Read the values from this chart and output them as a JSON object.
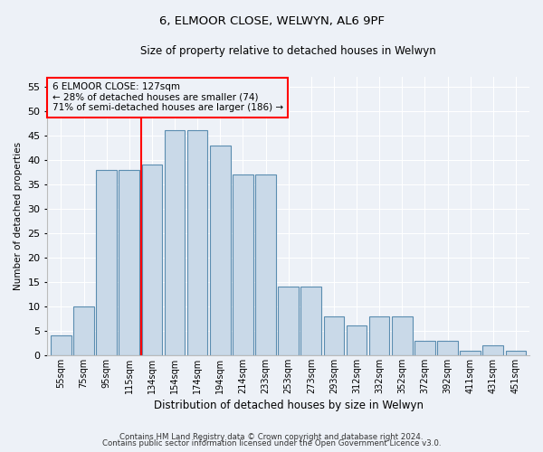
{
  "title": "6, ELMOOR CLOSE, WELWYN, AL6 9PF",
  "subtitle": "Size of property relative to detached houses in Welwyn",
  "xlabel": "Distribution of detached houses by size in Welwyn",
  "ylabel": "Number of detached properties",
  "categories": [
    "55sqm",
    "75sqm",
    "95sqm",
    "115sqm",
    "134sqm",
    "154sqm",
    "174sqm",
    "194sqm",
    "214sqm",
    "233sqm",
    "253sqm",
    "273sqm",
    "293sqm",
    "312sqm",
    "332sqm",
    "352sqm",
    "372sqm",
    "392sqm",
    "411sqm",
    "431sqm",
    "451sqm"
  ],
  "bar_heights": [
    4,
    10,
    38,
    38,
    39,
    46,
    46,
    43,
    37,
    37,
    14,
    14,
    8,
    6,
    8,
    8,
    3,
    3,
    1,
    2,
    1
  ],
  "bar_color": "#c9d9e8",
  "bar_edge_color": "#5b8db0",
  "vline_x": 3.52,
  "vline_color": "red",
  "annotation_box_text": "6 ELMOOR CLOSE: 127sqm\n← 28% of detached houses are smaller (74)\n71% of semi-detached houses are larger (186) →",
  "annotation_box_color": "red",
  "ylim": [
    0,
    57
  ],
  "yticks": [
    0,
    5,
    10,
    15,
    20,
    25,
    30,
    35,
    40,
    45,
    50,
    55
  ],
  "footer1": "Contains HM Land Registry data © Crown copyright and database right 2024.",
  "footer2": "Contains public sector information licensed under the Open Government Licence v3.0.",
  "bg_color": "#edf1f7",
  "grid_color": "#ffffff"
}
